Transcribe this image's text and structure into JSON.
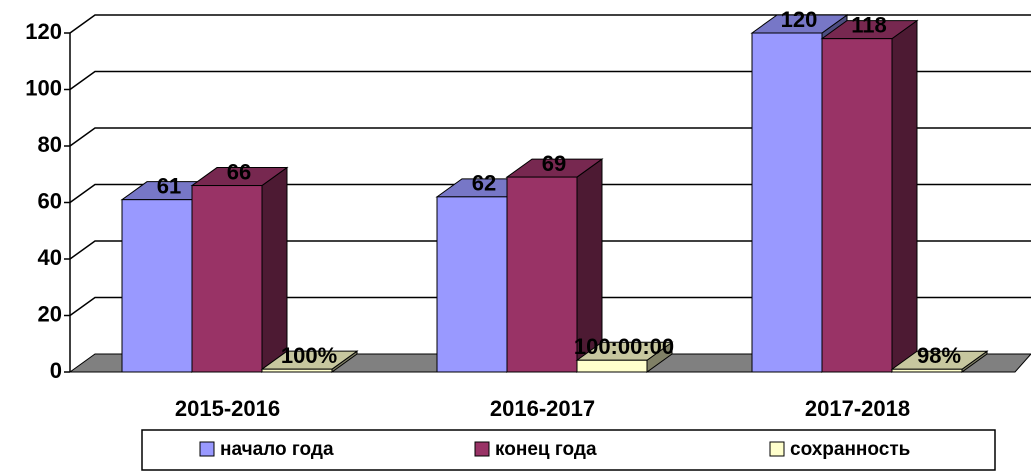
{
  "chart_data": {
    "type": "bar3d",
    "categories": [
      "2015-2016",
      "2016-2017",
      "2017-2018"
    ],
    "series": [
      {
        "name": "начало года",
        "color": "#9999ff",
        "values": [
          61,
          62,
          120
        ]
      },
      {
        "name": "конец года",
        "color": "#993366",
        "values": [
          66,
          69,
          118
        ]
      },
      {
        "name": "сохранность",
        "color": "#ffffcc",
        "values": [
          1,
          4.1667,
          0.98
        ],
        "value_labels": [
          "100%",
          "100:00:00",
          "98%"
        ]
      }
    ],
    "ylim": [
      0,
      120
    ],
    "yticks": [
      0,
      20,
      40,
      60,
      80,
      100,
      120
    ],
    "grid": true,
    "legend": "bottom"
  }
}
